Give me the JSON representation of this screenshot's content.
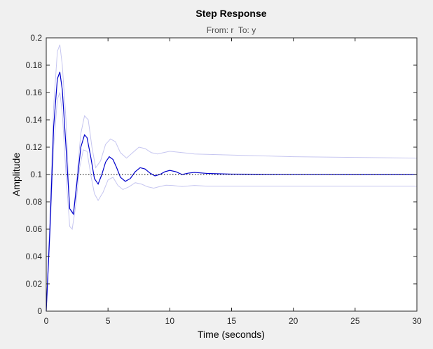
{
  "chart_data": {
    "type": "line",
    "title": "Step Response",
    "subtitle": "From: r  To: y",
    "xlabel": "Time (seconds)",
    "ylabel": "Amplitude",
    "xlim": [
      0,
      30
    ],
    "ylim": [
      0,
      0.2
    ],
    "xticks": [
      0,
      5,
      10,
      15,
      20,
      25,
      30
    ],
    "yticks": [
      0,
      0.02,
      0.04,
      0.06,
      0.08,
      0.1,
      0.12,
      0.14,
      0.16,
      0.18,
      0.2
    ],
    "xtick_labels": [
      "0",
      "5",
      "10",
      "15",
      "20",
      "25",
      "30"
    ],
    "ytick_labels": [
      "0",
      "0.02",
      "0.04",
      "0.06",
      "0.08",
      "0.1",
      "0.12",
      "0.14",
      "0.16",
      "0.18",
      "0.2"
    ],
    "grid": false,
    "reference_line": {
      "y": 0.1,
      "style": "dotted",
      "color": "#000000"
    },
    "series": [
      {
        "color": "#0000cc",
        "x": [
          0,
          0.3,
          0.6,
          0.9,
          1.1,
          1.3,
          1.6,
          1.9,
          2.2,
          2.5,
          2.8,
          3.1,
          3.3,
          3.6,
          3.9,
          4.2,
          4.5,
          4.8,
          5.1,
          5.4,
          5.7,
          6.0,
          6.4,
          6.8,
          7.2,
          7.6,
          8.0,
          8.4,
          8.8,
          9.2,
          9.6,
          10.0,
          10.5,
          11.0,
          11.5,
          12.0,
          13.0,
          14.0,
          15.0,
          17.0,
          20.0,
          25.0,
          30.0
        ],
        "y": [
          0,
          0.06,
          0.135,
          0.17,
          0.175,
          0.162,
          0.12,
          0.075,
          0.071,
          0.095,
          0.12,
          0.129,
          0.127,
          0.113,
          0.097,
          0.093,
          0.1,
          0.109,
          0.113,
          0.111,
          0.105,
          0.098,
          0.095,
          0.097,
          0.102,
          0.105,
          0.104,
          0.101,
          0.099,
          0.1,
          0.102,
          0.103,
          0.102,
          0.1,
          0.101,
          0.1015,
          0.1008,
          0.1005,
          0.1003,
          0.1002,
          0.1001,
          0.1,
          0.1
        ]
      },
      {
        "color": "#c6c6f0",
        "x": [
          0,
          0.3,
          0.6,
          0.9,
          1.1,
          1.3,
          1.6,
          1.9,
          2.2,
          2.5,
          2.8,
          3.1,
          3.4,
          3.7,
          4.0,
          4.4,
          4.8,
          5.2,
          5.6,
          6.0,
          6.5,
          7.0,
          7.5,
          8.0,
          8.5,
          9.0,
          9.5,
          10.0,
          11.0,
          12.0,
          14.0,
          16.0,
          18.0,
          20.0,
          25.0,
          30.0
        ],
        "y": [
          0,
          0.07,
          0.15,
          0.19,
          0.195,
          0.18,
          0.14,
          0.075,
          0.072,
          0.1,
          0.13,
          0.143,
          0.14,
          0.12,
          0.105,
          0.11,
          0.122,
          0.126,
          0.124,
          0.116,
          0.112,
          0.116,
          0.12,
          0.119,
          0.116,
          0.115,
          0.116,
          0.117,
          0.116,
          0.115,
          0.1145,
          0.114,
          0.1135,
          0.113,
          0.1125,
          0.112
        ]
      },
      {
        "color": "#c6c6f0",
        "x": [
          0,
          0.3,
          0.6,
          0.9,
          1.1,
          1.3,
          1.6,
          1.9,
          2.1,
          2.4,
          2.7,
          3.0,
          3.3,
          3.6,
          3.9,
          4.2,
          4.6,
          5.0,
          5.4,
          5.8,
          6.2,
          6.7,
          7.2,
          7.7,
          8.2,
          8.7,
          9.2,
          9.7,
          10.2,
          11.0,
          12.0,
          13.0,
          15.0,
          20.0,
          25.0,
          30.0
        ],
        "y": [
          0,
          0.055,
          0.12,
          0.155,
          0.16,
          0.145,
          0.1,
          0.062,
          0.06,
          0.078,
          0.105,
          0.118,
          0.117,
          0.1,
          0.086,
          0.081,
          0.087,
          0.096,
          0.098,
          0.092,
          0.089,
          0.091,
          0.094,
          0.093,
          0.091,
          0.09,
          0.0912,
          0.0922,
          0.092,
          0.0912,
          0.092,
          0.0915,
          0.0915,
          0.0915,
          0.0915,
          0.0915
        ]
      }
    ]
  }
}
